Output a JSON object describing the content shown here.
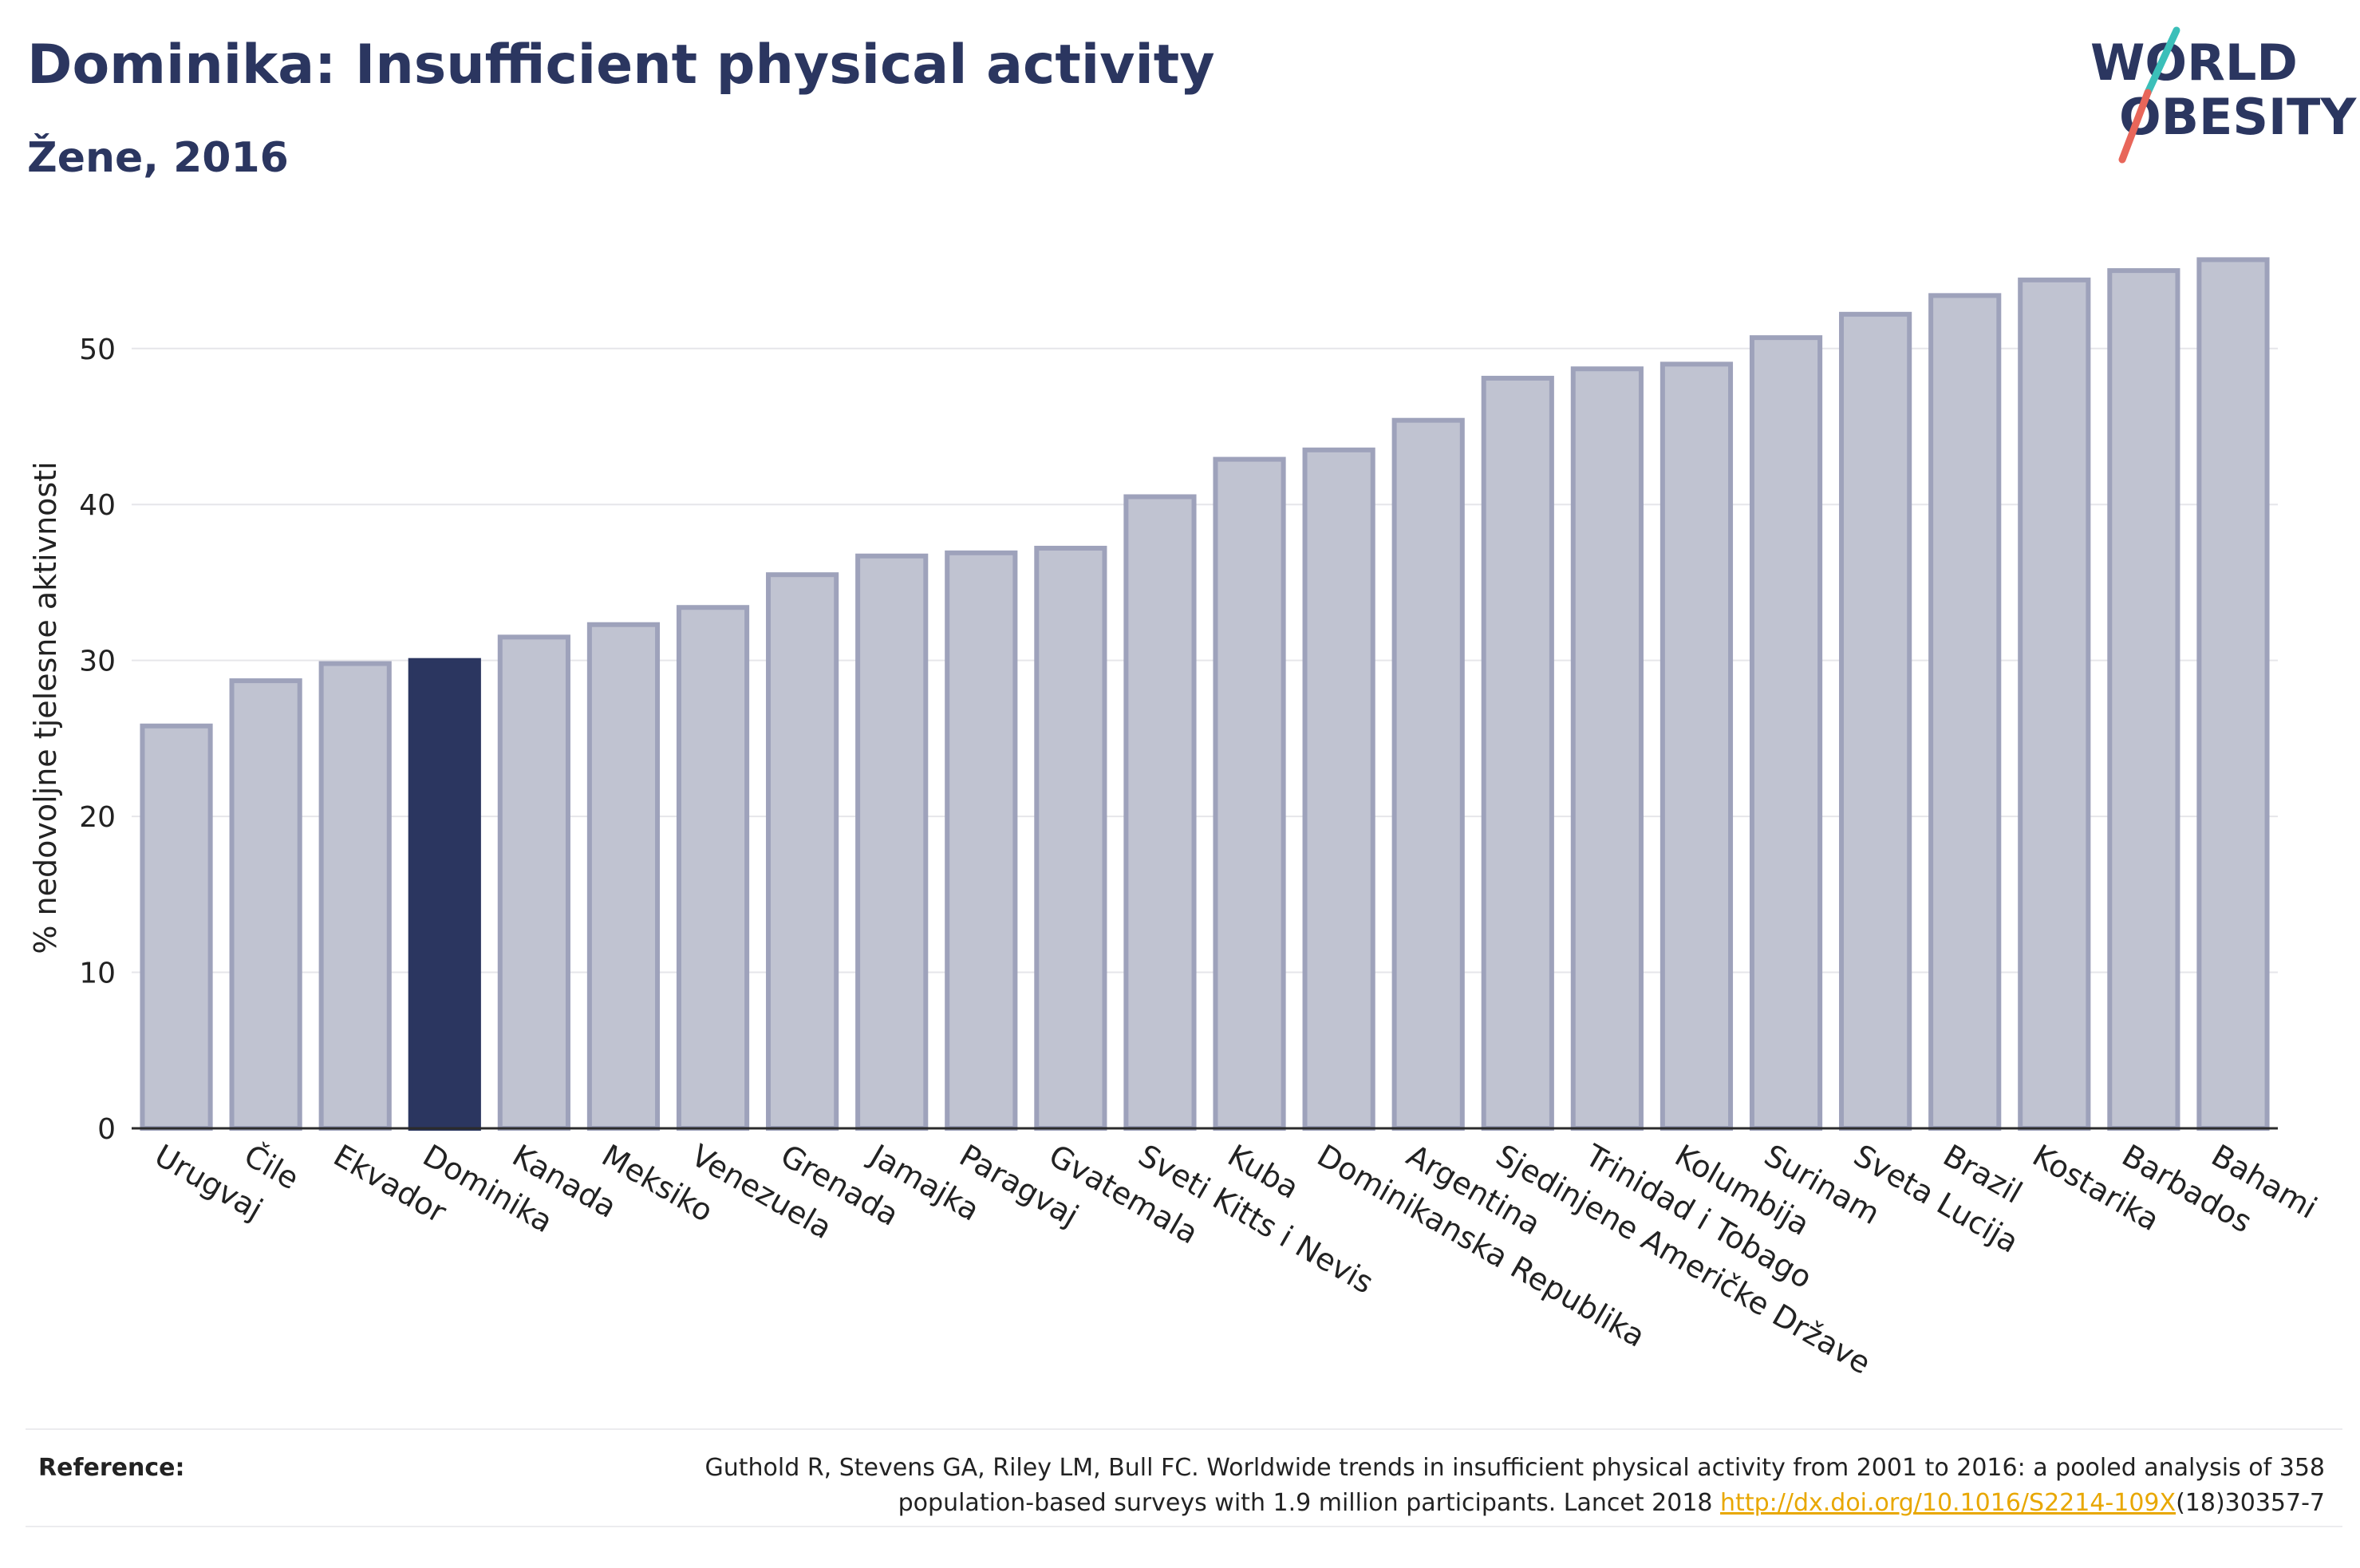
{
  "header": {
    "title": "Dominika: Insufficient physical activity",
    "subtitle": "Žene, 2016"
  },
  "logo": {
    "line1": "WORLD",
    "line2": "OBESITY",
    "accent_teal": "#3bbfb9",
    "accent_red": "#e8665a",
    "text_color": "#2b3660"
  },
  "chart_data": {
    "type": "bar",
    "title": "Dominika: Insufficient physical activity",
    "subtitle": "Žene, 2016",
    "xlabel": "",
    "ylabel": "% nedovoljne tjelesne aktivnosti",
    "ylim": [
      0,
      57
    ],
    "yticks": [
      0,
      10,
      20,
      30,
      40,
      50
    ],
    "grid": true,
    "highlight": "Dominika",
    "colors": {
      "default_fill": "#c0c3d1",
      "default_stroke": "#9ea2bb",
      "highlight_fill": "#2b3660"
    },
    "categories": [
      "Urugvaj",
      "Čile",
      "Ekvador",
      "Dominika",
      "Kanada",
      "Meksiko",
      "Venezuela",
      "Grenada",
      "Jamajka",
      "Paragvaj",
      "Gvatemala",
      "Sveti Kitts i Nevis",
      "Kuba",
      "Dominikanska Republika",
      "Argentina",
      "Sjedinjene Američke Države",
      "Trinidad i Tobago",
      "Kolumbija",
      "Surinam",
      "Sveta Lucija",
      "Brazil",
      "Kostarika",
      "Barbados",
      "Bahami"
    ],
    "values": [
      25.8,
      28.7,
      29.8,
      30.0,
      31.5,
      32.3,
      33.4,
      35.5,
      36.7,
      36.9,
      37.2,
      40.5,
      42.9,
      43.5,
      45.4,
      48.1,
      48.7,
      49.0,
      50.7,
      52.2,
      53.4,
      54.4,
      55.0,
      55.7
    ]
  },
  "reference": {
    "label": "Reference:",
    "text_line1": "Guthold R, Stevens GA, Riley LM, Bull FC. Worldwide trends in insufficient physical activity from 2001 to 2016: a pooled analysis of 358",
    "text_line2_before": "population-based surveys with 1.9 million participants. Lancet 2018 ",
    "link": "http://dx.doi.org/10.1016/S2214-109X",
    "text_line2_after": "(18)30357-7"
  }
}
